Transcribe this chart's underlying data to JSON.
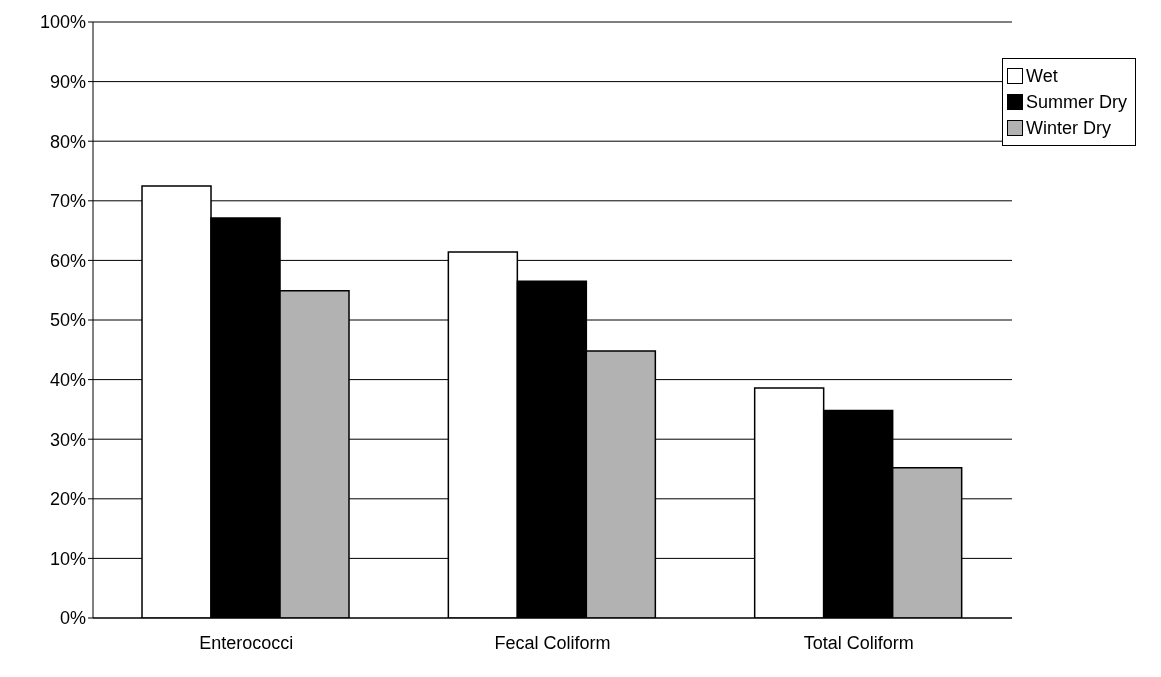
{
  "chart_data": {
    "type": "bar",
    "categories": [
      "Enterococci",
      "Fecal Coliform",
      "Total Coliform"
    ],
    "series": [
      {
        "name": "Wet",
        "color": "#ffffff",
        "values": [
          72.5,
          61.4,
          38.6
        ]
      },
      {
        "name": "Summer Dry",
        "color": "#000000",
        "values": [
          67.1,
          56.5,
          34.8
        ]
      },
      {
        "name": "Winter Dry",
        "color": "#b2b2b2",
        "values": [
          54.9,
          44.8,
          25.2
        ]
      }
    ],
    "ylim": [
      0,
      100
    ],
    "yticks": [
      {
        "value": 0,
        "label": "0%"
      },
      {
        "value": 10,
        "label": "10%"
      },
      {
        "value": 20,
        "label": "20%"
      },
      {
        "value": 30,
        "label": "30%"
      },
      {
        "value": 40,
        "label": "40%"
      },
      {
        "value": 50,
        "label": "50%"
      },
      {
        "value": 60,
        "label": "60%"
      },
      {
        "value": 70,
        "label": "70%"
      },
      {
        "value": 80,
        "label": "80%"
      },
      {
        "value": 90,
        "label": "90%"
      },
      {
        "value": 100,
        "label": "100%"
      }
    ],
    "grid": "y",
    "legend": "top right"
  }
}
